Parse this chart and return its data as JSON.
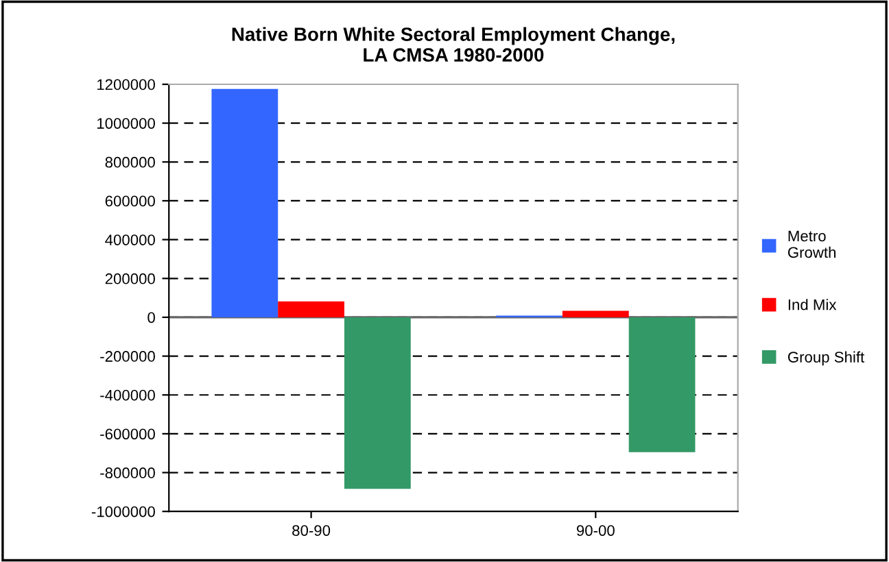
{
  "chart_data": {
    "type": "bar",
    "title": "Native Born White Sectoral Employment Change,\nLA CMSA 1980-2000",
    "categories": [
      "80-90",
      "90-00"
    ],
    "series": [
      {
        "name": "Metro\nGrowth",
        "color": "#3366ff",
        "values": [
          1176000,
          9000
        ]
      },
      {
        "name": "Ind Mix",
        "color": "#ff0000",
        "values": [
          82000,
          33000
        ]
      },
      {
        "name": "Group Shift",
        "color": "#339966",
        "values": [
          -884000,
          -695000
        ]
      }
    ],
    "ylim": [
      -1000000,
      1200000
    ],
    "yticks": [
      -1000000,
      -800000,
      -600000,
      -400000,
      -200000,
      0,
      200000,
      400000,
      600000,
      800000,
      1000000,
      1200000
    ],
    "grid": "y",
    "legend": "right"
  }
}
